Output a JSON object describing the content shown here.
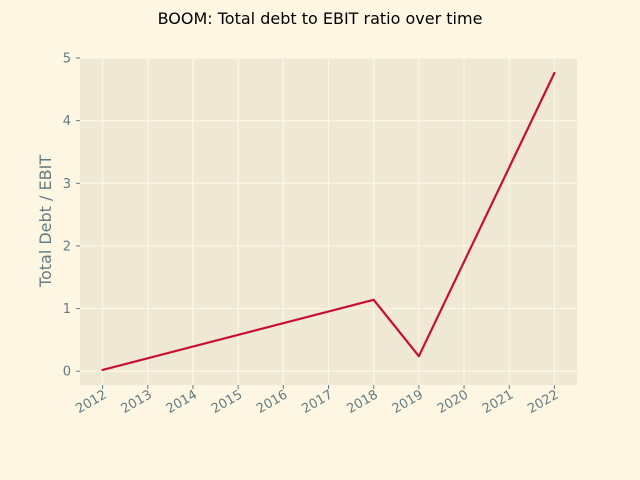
{
  "chart_data": {
    "type": "line",
    "title": "BOOM: Total debt to EBIT ratio over time",
    "xlabel": "",
    "ylabel": "Total Debt / EBIT",
    "x": [
      2012,
      2013,
      2014,
      2015,
      2016,
      2017,
      2018,
      2019,
      2020,
      2021,
      2022
    ],
    "x_tick_labels": [
      "2012",
      "2013",
      "2014",
      "2015",
      "2016",
      "2017",
      "2018",
      "2019",
      "2020",
      "2021",
      "2022"
    ],
    "series": [
      {
        "name": "Total Debt / EBIT",
        "x": [
          2012,
          2018,
          2019,
          2022
        ],
        "values": [
          0.02,
          1.14,
          0.24,
          4.76
        ]
      }
    ],
    "yticks": [
      0,
      1,
      2,
      3,
      4,
      5
    ],
    "y_tick_labels": [
      "0",
      "1",
      "2",
      "3",
      "4",
      "5"
    ],
    "xlim": [
      2011.5,
      2022.5
    ],
    "ylim": [
      -0.22,
      5.0
    ],
    "grid": true,
    "colors": {
      "background": "#fdf6e3",
      "plot_background": "#eee8d5",
      "grid": "#fdf6e3",
      "line": "#c8102e",
      "tick_text": "#657b83",
      "title_text": "#000000"
    }
  }
}
